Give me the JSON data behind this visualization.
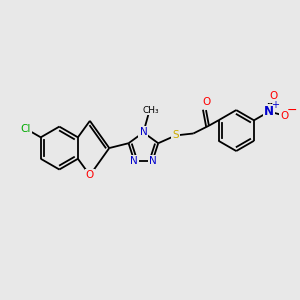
{
  "background_color": "#e8e8e8",
  "bond_color": "#000000",
  "colors": {
    "N": "#0000cc",
    "O": "#ff0000",
    "S": "#ccaa00",
    "Cl": "#00aa00",
    "C": "#000000"
  },
  "figsize": [
    3.0,
    3.0
  ],
  "dpi": 100
}
